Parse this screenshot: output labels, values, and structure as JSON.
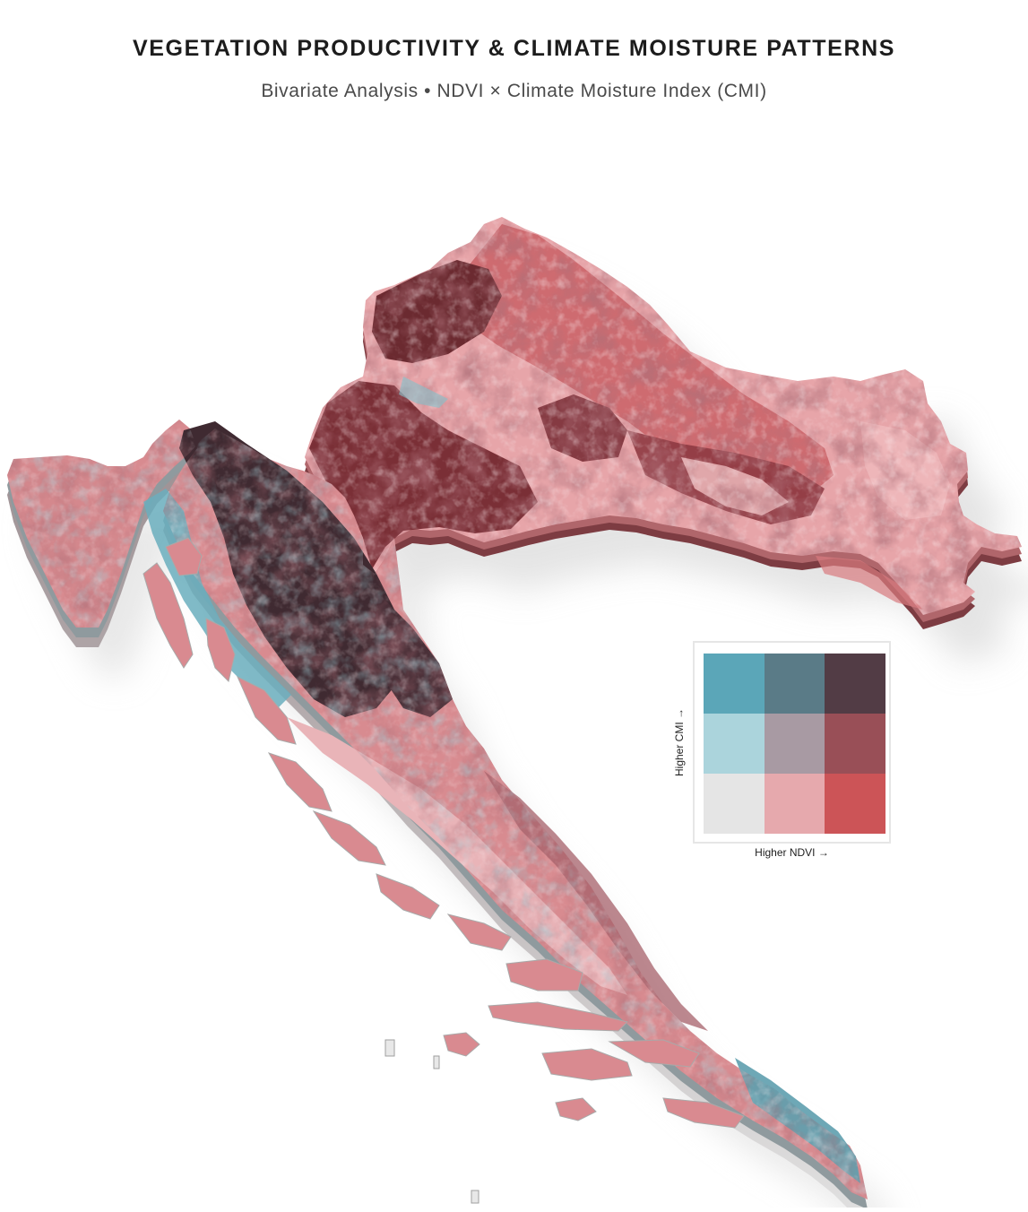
{
  "title": "VEGETATION PRODUCTIVITY & CLIMATE MOISTURE PATTERNS",
  "subtitle": "Bivariate Analysis • NDVI × Climate Moisture Index (CMI)",
  "legend": {
    "x_label": "Higher NDVI →",
    "y_label": "Higher CMI →",
    "rows_top_to_bottom": [
      [
        "#5ba6b8",
        "#5a7b87",
        "#523c45"
      ],
      [
        "#abd4dc",
        "#a89aa3",
        "#994f57"
      ],
      [
        "#e5e5e5",
        "#e6a9ad",
        "#cc5457"
      ]
    ]
  },
  "colors": {
    "mainland_light": "#e8a7ab",
    "mainland_mid": "#c45d63",
    "mainland_dark": "#6b2a30",
    "karst_dark": "#3e2a30",
    "moist_teal": "#6aaebd",
    "extrusion_wall": "#bfbfbf",
    "shadow": "#e9e9e9"
  }
}
